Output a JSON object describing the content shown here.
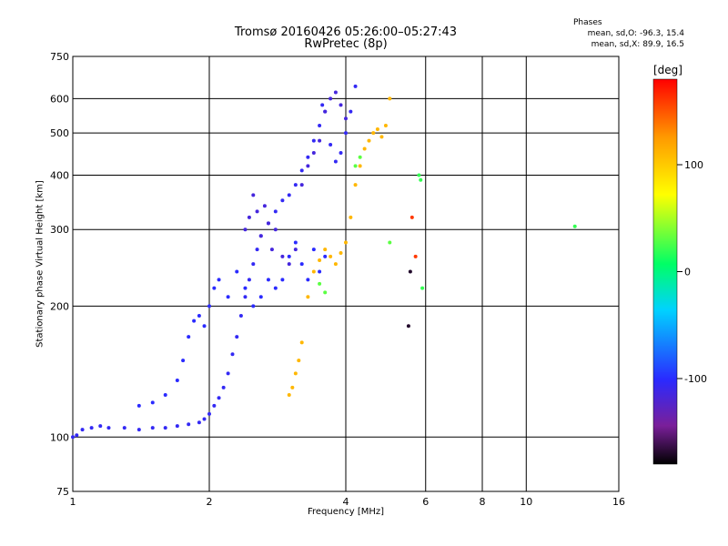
{
  "title_line1": "Tromsø 20160426 05:26:00–05:27:43",
  "title_line2": "RwPretec (8p)",
  "phase_box": {
    "heading": "Phases",
    "stat_o": "mean, sd,O: -96.3, 15.4",
    "stat_x": "mean, sd,X: 89.9, 16.5"
  },
  "colorbar": {
    "label": "[deg]",
    "range": [
      -180,
      180
    ],
    "ticks": [
      {
        "value": 100,
        "label": "100"
      },
      {
        "value": 0,
        "label": "0"
      },
      {
        "value": -100,
        "label": "-100"
      }
    ]
  },
  "chart_data": {
    "type": "scatter",
    "title": "Tromsø 20160426 05:26:00–05:27:43",
    "subtitle": "RwPretec (8p)",
    "xlabel": "Frequency [MHz]",
    "ylabel": "Stationary phase Virtual Height [km]",
    "x_scale": "log",
    "y_scale": "log",
    "xlim": [
      1,
      16
    ],
    "ylim": [
      75,
      750
    ],
    "x_ticks": [
      1,
      2,
      4,
      6,
      8,
      10,
      16
    ],
    "y_ticks": [
      75,
      100,
      200,
      300,
      400,
      500,
      600,
      750
    ],
    "grid": true,
    "series": [
      {
        "color_value": -105,
        "x": [
          1.0,
          1.02,
          1.05,
          1.1,
          1.15,
          1.2,
          1.3,
          1.4,
          1.5,
          1.6,
          1.7,
          1.8,
          1.9,
          1.95,
          2.0,
          2.05,
          2.1,
          2.15,
          2.2,
          2.25,
          2.3,
          2.35,
          2.4,
          2.45,
          2.5,
          2.55,
          2.6,
          2.7,
          2.8,
          2.9,
          3.0,
          3.1,
          3.2,
          3.3,
          3.4,
          3.5,
          3.55,
          3.6,
          3.7,
          3.8,
          3.9,
          4.0,
          4.1,
          4.2
        ],
        "y": [
          100,
          101,
          104,
          105,
          106,
          105,
          105,
          104,
          105,
          105,
          106,
          107,
          108,
          110,
          113,
          118,
          123,
          130,
          140,
          155,
          170,
          190,
          210,
          230,
          250,
          270,
          290,
          310,
          330,
          350,
          360,
          380,
          410,
          440,
          480,
          520,
          580,
          560,
          470,
          430,
          450,
          500,
          560,
          640
        ]
      },
      {
        "color_value": -100,
        "x": [
          1.4,
          1.5,
          1.6,
          1.7,
          1.75,
          1.8,
          1.85,
          1.9,
          1.95,
          2.0,
          2.05,
          2.1,
          2.2,
          2.3,
          2.4,
          2.5,
          2.6,
          2.7,
          2.8,
          2.9,
          3.0,
          3.1,
          3.2,
          3.3,
          3.4,
          3.5,
          3.6
        ],
        "y": [
          118,
          120,
          125,
          135,
          150,
          170,
          185,
          190,
          180,
          200,
          220,
          230,
          210,
          240,
          220,
          200,
          210,
          230,
          220,
          230,
          260,
          280,
          250,
          230,
          270,
          240,
          260
        ]
      },
      {
        "color_value": -115,
        "x": [
          2.4,
          2.45,
          2.5,
          2.55,
          2.6,
          2.65,
          2.7,
          2.75,
          2.8,
          2.9,
          3.0,
          3.1,
          3.2,
          3.3,
          3.4,
          3.5,
          3.6,
          3.7,
          3.8,
          3.9,
          4.0
        ],
        "y": [
          300,
          320,
          360,
          330,
          290,
          340,
          310,
          270,
          300,
          260,
          250,
          270,
          380,
          420,
          450,
          480,
          560,
          600,
          620,
          580,
          540
        ]
      },
      {
        "color_value": 110,
        "x": [
          3.0,
          3.05,
          3.1,
          3.15,
          3.2,
          3.3,
          3.4,
          3.5,
          3.6,
          3.7,
          3.8,
          3.9,
          4.0,
          4.1,
          4.2,
          4.3,
          4.4,
          4.5,
          4.6,
          4.7,
          4.8,
          4.9,
          5.0
        ],
        "y": [
          125,
          130,
          140,
          150,
          165,
          210,
          240,
          255,
          270,
          260,
          250,
          265,
          280,
          320,
          380,
          420,
          460,
          480,
          500,
          510,
          490,
          520,
          600
        ]
      },
      {
        "color_value": 30,
        "x": [
          3.5,
          3.6,
          4.2,
          4.3,
          5.0
        ],
        "y": [
          225,
          215,
          420,
          440,
          280
        ]
      },
      {
        "color_value": -170,
        "x": [
          5.5,
          5.55
        ],
        "y": [
          180,
          240
        ]
      },
      {
        "color_value": 160,
        "x": [
          5.6,
          5.7
        ],
        "y": [
          320,
          260
        ]
      },
      {
        "color_value": 20,
        "x": [
          5.8,
          5.85,
          5.9,
          12.8
        ],
        "y": [
          400,
          390,
          220,
          305
        ]
      }
    ]
  }
}
